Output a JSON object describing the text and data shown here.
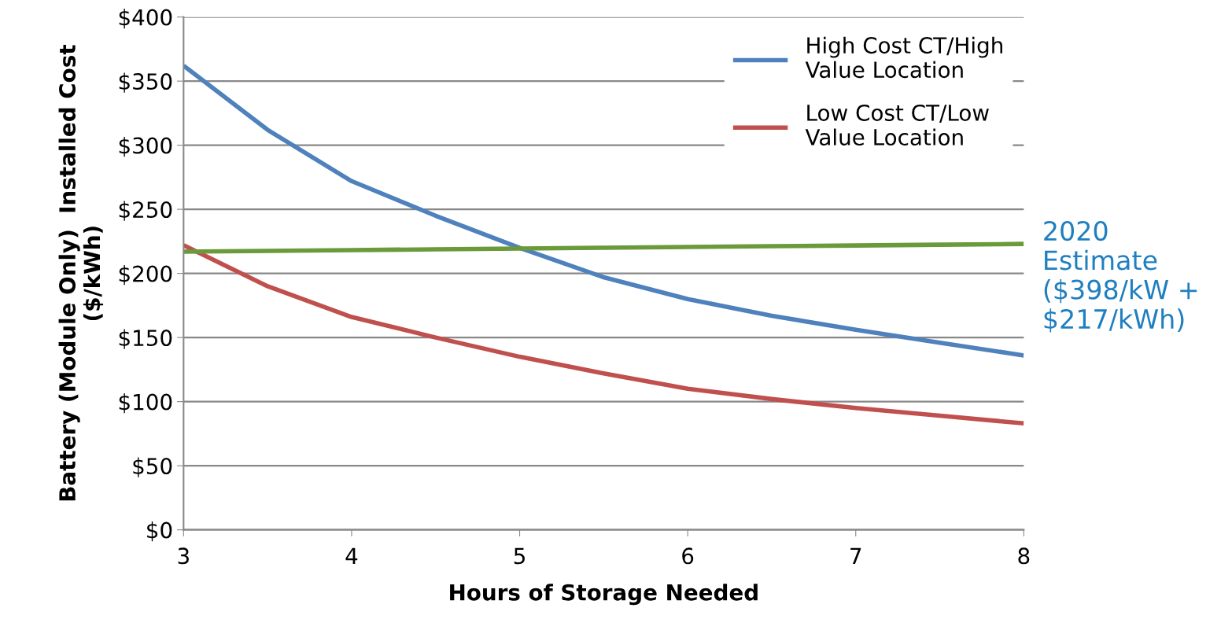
{
  "chart_data": {
    "type": "line",
    "xlabel": "Hours of Storage Needed",
    "ylabel": "Battery (Module Only)  Installed Cost\n($/kWh)",
    "x": [
      3,
      3.5,
      4,
      4.5,
      5,
      5.5,
      6,
      6.5,
      7,
      7.5,
      8
    ],
    "series": [
      {
        "name": "High Cost CT/High\nValue Location",
        "color": "#4f81bd",
        "values": [
          362,
          312,
          272,
          245,
          220,
          197,
          180,
          167,
          156,
          146,
          136
        ]
      },
      {
        "name": "Low Cost CT/Low\nValue Location",
        "color": "#c0504d",
        "values": [
          222,
          190,
          166,
          150,
          135,
          122,
          110,
          102,
          95,
          89,
          83
        ]
      },
      {
        "color": "#6a9a3a",
        "values": [
          217,
          217.6,
          218.2,
          218.8,
          219.4,
          220,
          220.6,
          221.2,
          221.8,
          222.4,
          223
        ]
      }
    ],
    "xlim": [
      3,
      8
    ],
    "ylim": [
      0,
      400
    ],
    "xticks": [
      3,
      4,
      5,
      6,
      7,
      8
    ],
    "yticks": [
      {
        "value": 0,
        "label": "$0"
      },
      {
        "value": 50,
        "label": "$50"
      },
      {
        "value": 100,
        "label": "$100"
      },
      {
        "value": 150,
        "label": "$150"
      },
      {
        "value": 200,
        "label": "$200"
      },
      {
        "value": 250,
        "label": "$250"
      },
      {
        "value": 300,
        "label": "$300"
      },
      {
        "value": 350,
        "label": "$350"
      },
      {
        "value": 400,
        "label": "$400"
      }
    ],
    "grid": "y",
    "legend": "top right",
    "marker": "none",
    "line_style": "solid",
    "annotations": [
      "2020\nEstimate\n($398/kW +\n$217/kWh)"
    ]
  }
}
